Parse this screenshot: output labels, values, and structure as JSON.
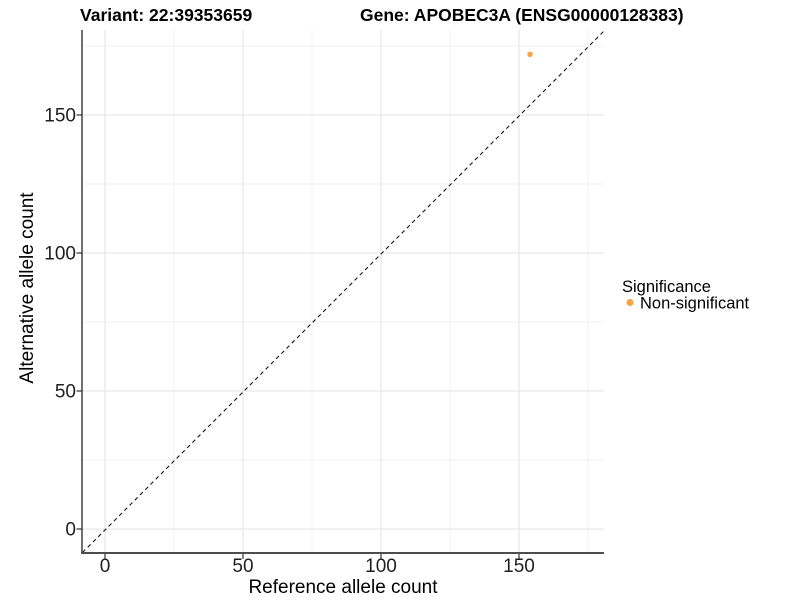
{
  "titles": {
    "left": "Variant: 22:39353659",
    "right": "Gene: APOBEC3A (ENSG00000128383)"
  },
  "axes": {
    "x": {
      "label": "Reference allele count",
      "ticks": [
        "0",
        "50",
        "100",
        "150"
      ]
    },
    "y": {
      "label": "Alternative allele count",
      "ticks": [
        "0",
        "50",
        "100",
        "150"
      ]
    }
  },
  "legend": {
    "title": "Significance",
    "items": [
      {
        "label": "Non-significant",
        "color": "#F9A242",
        "marker": "filled-circle"
      }
    ]
  },
  "colors": {
    "point": "#F9A242",
    "grid_major": "#E3E3E3",
    "grid_minor": "#F1F1F1",
    "axis_line_bottom": "#4D4D4D",
    "axis_line_left": "#333333",
    "identity_line": "#151515",
    "background": "#FFFFFF"
  },
  "chart_data": {
    "type": "scatter",
    "title_left": "Variant: 22:39353659",
    "title_right": "Gene: APOBEC3A (ENSG00000128383)",
    "xlabel": "Reference allele count",
    "ylabel": "Alternative allele count",
    "x_ticks": [
      0,
      50,
      100,
      150
    ],
    "y_ticks": [
      0,
      50,
      100,
      150
    ],
    "xlim": [
      -8.3,
      180.8
    ],
    "ylim": [
      -8.7,
      180.8
    ],
    "grid": "on (light grey major + lighter minor gridlines, white panel)",
    "legend_position": "right-middle",
    "series": [
      {
        "name": "Non-significant",
        "color": "#F9A242",
        "points": [
          {
            "x": 154,
            "y": 172
          }
        ]
      }
    ],
    "reference_line": {
      "type": "identity (y = x)",
      "style": "dashed",
      "color": "#151515"
    }
  }
}
